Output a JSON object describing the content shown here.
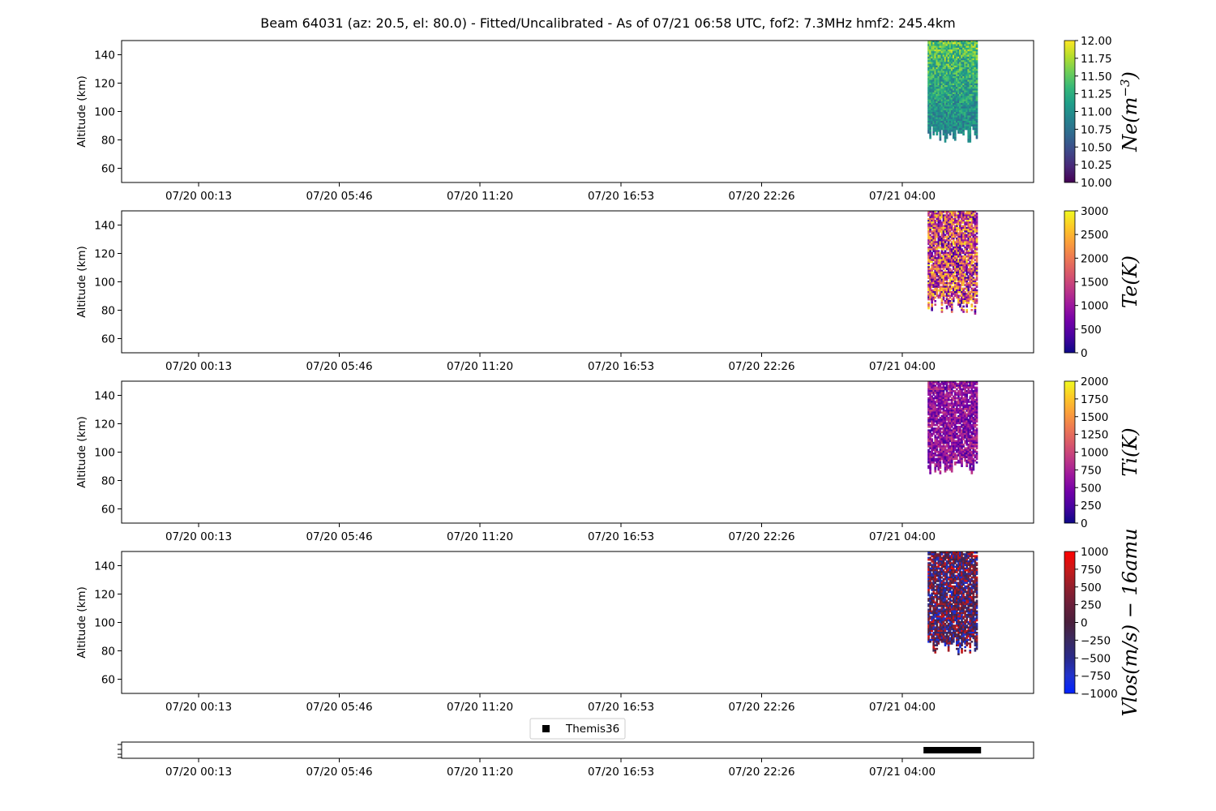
{
  "title": "Beam 64031 (az: 20.5, el: 80.0) - Fitted/Uncalibrated - As of 07/21 06:58 UTC, fof2: 7.3MHz  hmf2: 245.4km",
  "time_ticks": [
    "07/20 00:13",
    "07/20 05:46",
    "07/20 11:20",
    "07/20 16:53",
    "07/20 22:26",
    "07/21 04:00"
  ],
  "legend": {
    "label": "Themis36"
  },
  "chart_data": [
    {
      "type": "heatmap",
      "parameter": "Ne",
      "ylabel": "Altitude (km)",
      "ylim": [
        50,
        150
      ],
      "yticks": [
        60,
        80,
        100,
        120,
        140
      ],
      "colorbar": {
        "label": "Ne(m^-3)",
        "label_parts": [
          "Ne(m",
          "−3",
          ")"
        ],
        "colormap": "viridis",
        "range": [
          10,
          12
        ],
        "ticks": [
          "10.00",
          "10.25",
          "10.50",
          "10.75",
          "11.00",
          "11.25",
          "11.50",
          "11.75",
          "12.00"
        ]
      },
      "data_region": {
        "x_start": "07/21 05:00",
        "x_end": "07/21 06:58",
        "y_bottom": 78,
        "y_top": 150,
        "value_range": [
          10.3,
          11.9
        ]
      }
    },
    {
      "type": "heatmap",
      "parameter": "Te",
      "ylabel": "Altitude (km)",
      "ylim": [
        50,
        150
      ],
      "yticks": [
        60,
        80,
        100,
        120,
        140
      ],
      "colorbar": {
        "label": "Te(K)",
        "colormap": "plasma",
        "range": [
          0,
          3000
        ],
        "ticks": [
          "0",
          "500",
          "1000",
          "1500",
          "2000",
          "2500",
          "3000"
        ]
      },
      "data_region": {
        "x_start": "07/21 05:00",
        "x_end": "07/21 06:58",
        "y_bottom": 78,
        "y_top": 150,
        "value_range": [
          200,
          2900
        ]
      }
    },
    {
      "type": "heatmap",
      "parameter": "Ti",
      "ylabel": "Altitude (km)",
      "ylim": [
        50,
        150
      ],
      "yticks": [
        60,
        80,
        100,
        120,
        140
      ],
      "colorbar": {
        "label": "Ti(K)",
        "colormap": "plasma",
        "range": [
          0,
          2000
        ],
        "ticks": [
          "0",
          "250",
          "500",
          "750",
          "1000",
          "1250",
          "1500",
          "1750",
          "2000"
        ]
      },
      "data_region": {
        "x_start": "07/21 05:00",
        "x_end": "07/21 06:58",
        "y_bottom": 84,
        "y_top": 150,
        "value_range": [
          200,
          1000
        ]
      }
    },
    {
      "type": "heatmap",
      "parameter": "Vlos",
      "ylabel": "Altitude (km)",
      "ylim": [
        50,
        150
      ],
      "yticks": [
        60,
        80,
        100,
        120,
        140
      ],
      "colorbar": {
        "label": "Vlos(m/s) − 16amu",
        "colormap": "bwr-dark",
        "range": [
          -1000,
          1000
        ],
        "ticks": [
          "−1000",
          "−750",
          "−500",
          "−250",
          "0",
          "250",
          "500",
          "750",
          "1000"
        ]
      },
      "data_region": {
        "x_start": "07/21 05:00",
        "x_end": "07/21 06:58",
        "y_bottom": 78,
        "y_top": 150,
        "value_range": [
          -900,
          900
        ]
      }
    },
    {
      "type": "scatter",
      "parameter": "Themis36",
      "marker": "square",
      "color": "#000000",
      "x_range": [
        "07/21 04:58",
        "07/21 07:00"
      ]
    }
  ]
}
